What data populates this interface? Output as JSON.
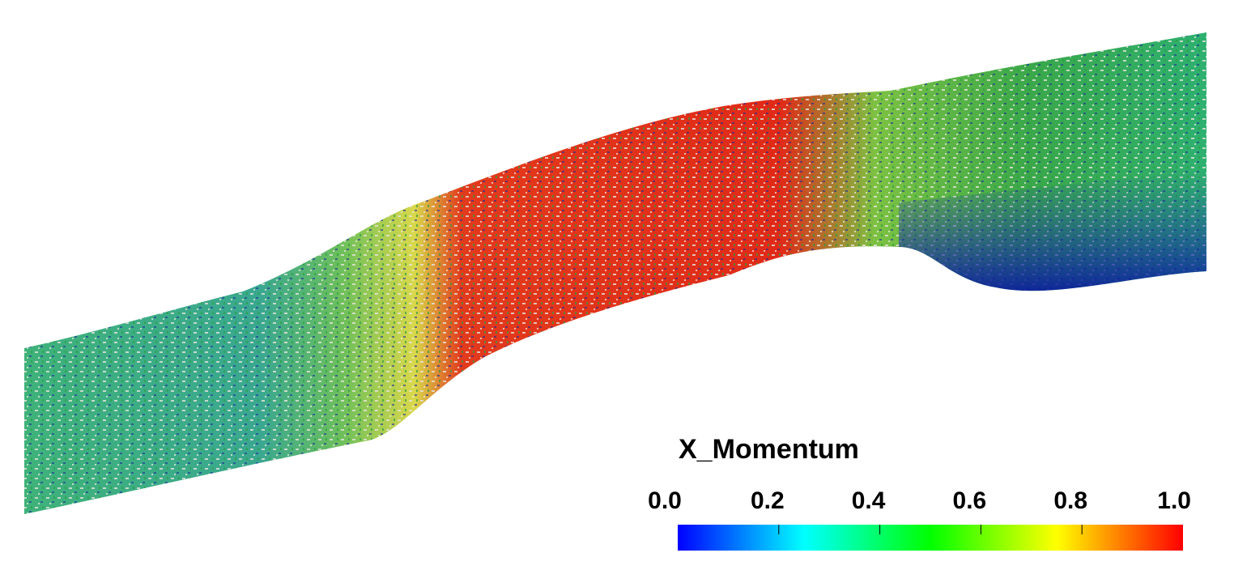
{
  "colorbar": {
    "title": "X_Momentum",
    "range": [
      0,
      1
    ],
    "ticks": [
      {
        "value": 0,
        "label": "0.0"
      },
      {
        "value": 0.2,
        "label": "0.2"
      },
      {
        "value": 0.4,
        "label": "0.4"
      },
      {
        "value": 0.6,
        "label": "0.6"
      },
      {
        "value": 0.8,
        "label": "0.8"
      },
      {
        "value": 1,
        "label": "1.0"
      }
    ],
    "colors": [
      "#0000ff",
      "#00ffff",
      "#00ff00",
      "#ffff00",
      "#ff0000"
    ]
  }
}
